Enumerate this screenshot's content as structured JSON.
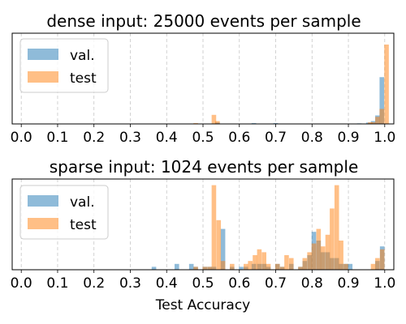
{
  "chart_data": [
    {
      "type": "histogram",
      "title": "dense input: 25000 events per sample",
      "xlabel": "",
      "xlim": [
        -0.025,
        1.025
      ],
      "xticks": [
        "0.0",
        "0.1",
        "0.2",
        "0.3",
        "0.4",
        "0.5",
        "0.6",
        "0.7",
        "0.8",
        "0.9",
        "1.0"
      ],
      "grid": "vertical dashed",
      "legend_position": "top-left",
      "y_axis": "hidden",
      "bin_width": 0.0125,
      "series": [
        {
          "name": "val.",
          "color": "#1f77b4",
          "bins": [
            {
              "x": 0.54,
              "count": 0.5
            },
            {
              "x": 0.64,
              "count": 0.3
            },
            {
              "x": 0.7,
              "count": 0.3
            },
            {
              "x": 0.93,
              "count": 0.2
            },
            {
              "x": 0.955,
              "count": 0.5
            },
            {
              "x": 0.968,
              "count": 1.0
            },
            {
              "x": 0.98,
              "count": 3.0
            },
            {
              "x": 0.992,
              "count": 16.5
            }
          ]
        },
        {
          "name": "test",
          "color": "#ff7f0e",
          "bins": [
            {
              "x": 0.48,
              "count": 0.3
            },
            {
              "x": 0.53,
              "count": 3.2
            },
            {
              "x": 0.54,
              "count": 1.0
            },
            {
              "x": 0.96,
              "count": 0.6
            },
            {
              "x": 0.968,
              "count": 0.6
            },
            {
              "x": 0.98,
              "count": 2.5
            },
            {
              "x": 0.992,
              "count": 5.3
            },
            {
              "x": 1.005,
              "count": 28.0
            }
          ]
        }
      ]
    },
    {
      "type": "histogram",
      "title": "sparse input: 1024 events per sample",
      "xlabel": "Test Accuracy",
      "xlim": [
        -0.025,
        1.025
      ],
      "xticks": [
        "0.0",
        "0.1",
        "0.2",
        "0.3",
        "0.4",
        "0.5",
        "0.6",
        "0.7",
        "0.8",
        "0.9",
        "1.0"
      ],
      "grid": "vertical dashed",
      "legend_position": "top-left",
      "y_axis": "hidden",
      "bin_width": 0.0125,
      "series": [
        {
          "name": "val.",
          "color": "#1f77b4",
          "bins": [
            {
              "x": 0.365,
              "count": 1
            },
            {
              "x": 0.428,
              "count": 2
            },
            {
              "x": 0.468,
              "count": 2
            },
            {
              "x": 0.48,
              "count": 1
            },
            {
              "x": 0.505,
              "count": 1
            },
            {
              "x": 0.518,
              "count": 1
            },
            {
              "x": 0.53,
              "count": 1
            },
            {
              "x": 0.555,
              "count": 14
            },
            {
              "x": 0.58,
              "count": 1
            },
            {
              "x": 0.605,
              "count": 1
            },
            {
              "x": 0.618,
              "count": 1
            },
            {
              "x": 0.64,
              "count": 2
            },
            {
              "x": 0.655,
              "count": 2
            },
            {
              "x": 0.668,
              "count": 2
            },
            {
              "x": 0.68,
              "count": 1
            },
            {
              "x": 0.705,
              "count": 2
            },
            {
              "x": 0.718,
              "count": 1
            },
            {
              "x": 0.743,
              "count": 2
            },
            {
              "x": 0.768,
              "count": 1
            },
            {
              "x": 0.78,
              "count": 3
            },
            {
              "x": 0.793,
              "count": 5
            },
            {
              "x": 0.805,
              "count": 13
            },
            {
              "x": 0.818,
              "count": 10
            },
            {
              "x": 0.83,
              "count": 6
            },
            {
              "x": 0.843,
              "count": 6
            },
            {
              "x": 0.855,
              "count": 4
            },
            {
              "x": 0.868,
              "count": 4
            },
            {
              "x": 0.88,
              "count": 2
            },
            {
              "x": 0.893,
              "count": 2
            },
            {
              "x": 0.905,
              "count": 2
            },
            {
              "x": 0.98,
              "count": 3
            },
            {
              "x": 0.993,
              "count": 8
            }
          ]
        },
        {
          "name": "test",
          "color": "#ff7f0e",
          "bins": [
            {
              "x": 0.48,
              "count": 1
            },
            {
              "x": 0.505,
              "count": 1
            },
            {
              "x": 0.518,
              "count": 1
            },
            {
              "x": 0.53,
              "count": 29
            },
            {
              "x": 0.543,
              "count": 17
            },
            {
              "x": 0.555,
              "count": 3
            },
            {
              "x": 0.58,
              "count": 2
            },
            {
              "x": 0.618,
              "count": 2
            },
            {
              "x": 0.63,
              "count": 3
            },
            {
              "x": 0.643,
              "count": 5
            },
            {
              "x": 0.655,
              "count": 7
            },
            {
              "x": 0.668,
              "count": 6
            },
            {
              "x": 0.68,
              "count": 2
            },
            {
              "x": 0.705,
              "count": 2
            },
            {
              "x": 0.718,
              "count": 1
            },
            {
              "x": 0.73,
              "count": 5
            },
            {
              "x": 0.743,
              "count": 4
            },
            {
              "x": 0.768,
              "count": 1
            },
            {
              "x": 0.78,
              "count": 4
            },
            {
              "x": 0.793,
              "count": 6
            },
            {
              "x": 0.805,
              "count": 9
            },
            {
              "x": 0.818,
              "count": 14
            },
            {
              "x": 0.83,
              "count": 8
            },
            {
              "x": 0.843,
              "count": 12
            },
            {
              "x": 0.855,
              "count": 21
            },
            {
              "x": 0.868,
              "count": 29
            },
            {
              "x": 0.88,
              "count": 10
            },
            {
              "x": 0.893,
              "count": 2
            },
            {
              "x": 0.968,
              "count": 2
            },
            {
              "x": 0.98,
              "count": 4
            },
            {
              "x": 0.993,
              "count": 7
            }
          ]
        }
      ]
    }
  ]
}
